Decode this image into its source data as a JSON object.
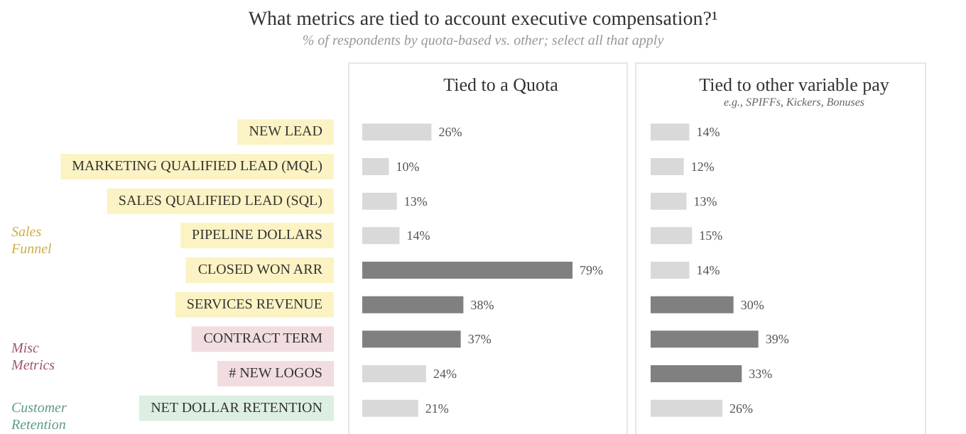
{
  "chart_data": [
    {
      "type": "other",
      "title": "What metrics are tied to account executive compensation?¹",
      "subtitle": "% of respondents by quota-based vs. other; select all that apply"
    },
    {
      "type": "bar",
      "orientation": "horizontal",
      "title": "Tied to a Quota",
      "tick_labels": "y",
      "categories": [
        "NEW LEAD",
        "MARKETING QUALIFIED LEAD (MQL)",
        "SALES QUALIFIED LEAD (SQL)",
        "PIPELINE DOLLARS",
        "CLOSED WON ARR",
        "SERVICES REVENUE",
        "CONTRACT TERM",
        "# NEW LOGOS",
        "NET DOLLAR RETENTION"
      ],
      "values": [
        26,
        10,
        13,
        14,
        79,
        38,
        37,
        24,
        21
      ],
      "colors": [
        "#d9d9d9",
        "#d9d9d9",
        "#d9d9d9",
        "#d9d9d9",
        "#808080",
        "#808080",
        "#808080",
        "#d9d9d9",
        "#d9d9d9"
      ],
      "value_labels": [
        "26%",
        "10%",
        "13%",
        "14%",
        "79%",
        "38%",
        "37%",
        "24%",
        "21%"
      ],
      "annotations": [
        "Sales Funnel",
        "Misc Metrics",
        "Customer Retention"
      ]
    },
    {
      "type": "bar",
      "orientation": "horizontal",
      "title": "Tied to other variable pay",
      "subtitle": "e.g., SPIFFs, Kickers, Bonuses",
      "tick_labels": false,
      "categories": [
        null,
        null,
        null,
        null,
        null,
        null,
        null,
        null,
        null
      ],
      "values": [
        14,
        12,
        13,
        15,
        14,
        30,
        39,
        33,
        26
      ],
      "colors": [
        "#d9d9d9",
        "#d9d9d9",
        "#d9d9d9",
        "#d9d9d9",
        "#d9d9d9",
        "#808080",
        "#808080",
        "#808080",
        "#d9d9d9"
      ],
      "value_labels": [
        "14%",
        "12%",
        "13%",
        "15%",
        "14%",
        "30%",
        "39%",
        "33%",
        "26%"
      ]
    }
  ]
}
